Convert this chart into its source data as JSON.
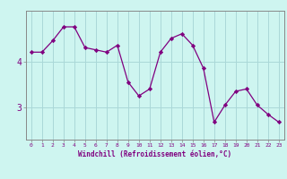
{
  "x": [
    0,
    1,
    2,
    3,
    4,
    5,
    6,
    7,
    8,
    9,
    10,
    11,
    12,
    13,
    14,
    15,
    16,
    17,
    18,
    19,
    20,
    21,
    22,
    23
  ],
  "y": [
    4.2,
    4.2,
    4.45,
    4.75,
    4.75,
    4.3,
    4.25,
    4.2,
    4.35,
    3.55,
    3.25,
    3.4,
    4.2,
    4.5,
    4.6,
    4.35,
    3.85,
    2.68,
    3.05,
    3.35,
    3.4,
    3.05,
    2.85,
    2.68
  ],
  "line_color": "#800080",
  "marker_color": "#800080",
  "bg_color": "#cef5f0",
  "grid_color": "#aad8d8",
  "axis_color": "#888888",
  "xlabel": "Windchill (Refroidissement éolien,°C)",
  "xlabel_color": "#800080",
  "tick_color": "#800080",
  "yticks": [
    3,
    4
  ],
  "ylim": [
    2.3,
    5.1
  ],
  "xlim": [
    -0.5,
    23.5
  ],
  "title": ""
}
